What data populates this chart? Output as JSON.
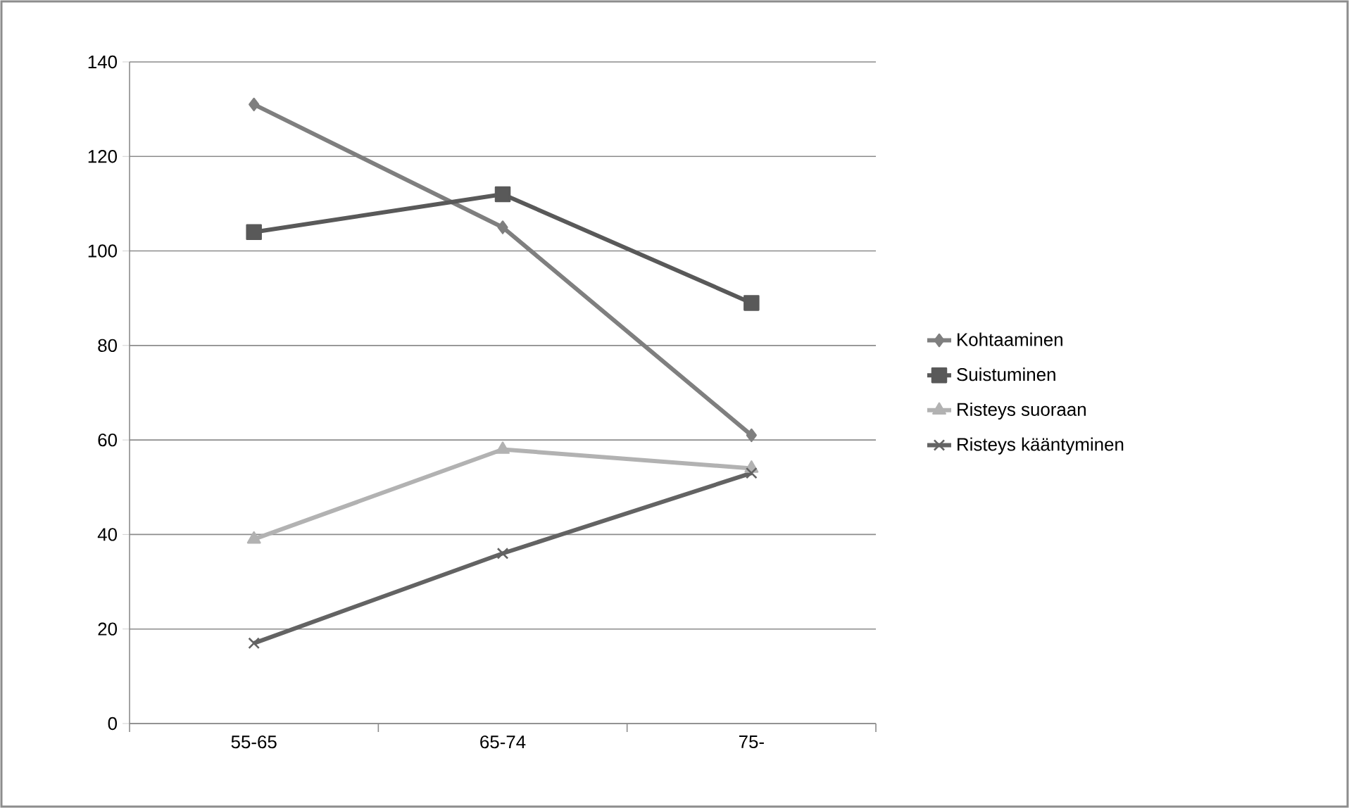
{
  "chart_data": {
    "type": "line",
    "categories": [
      "55-65",
      "65-74",
      "75-"
    ],
    "series": [
      {
        "name": "Kohtaaminen",
        "color": "#7f7f7f",
        "marker": "diamond",
        "values": [
          131,
          105,
          61
        ]
      },
      {
        "name": "Suistuminen",
        "color": "#595959",
        "marker": "square",
        "values": [
          104,
          112,
          89
        ]
      },
      {
        "name": "Risteys suoraan",
        "color": "#b2b2b2",
        "marker": "triangle",
        "values": [
          39,
          58,
          54
        ]
      },
      {
        "name": "Risteys kääntyminen",
        "color": "#636363",
        "marker": "cross",
        "values": [
          17,
          36,
          53
        ]
      }
    ],
    "ylim": [
      0,
      140
    ],
    "yticks": [
      0,
      20,
      40,
      60,
      80,
      100,
      120,
      140
    ],
    "grid": "y",
    "legend": "right"
  }
}
